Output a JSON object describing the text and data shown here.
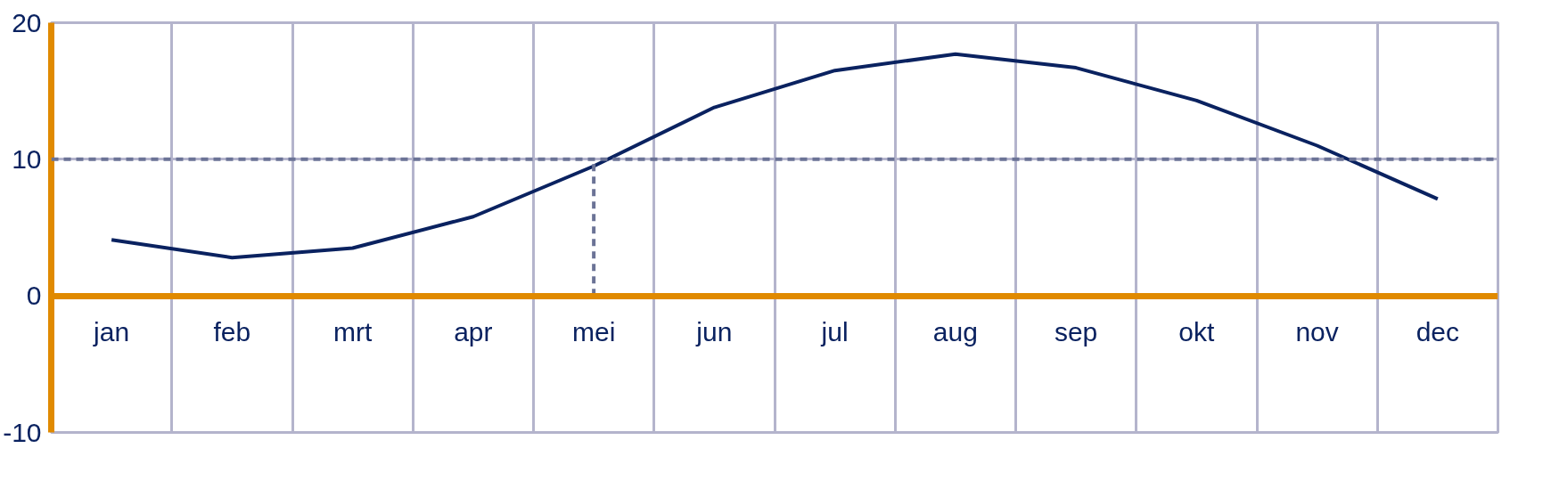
{
  "chart_data": {
    "type": "line",
    "categories": [
      "jan",
      "feb",
      "mrt",
      "apr",
      "mei",
      "jun",
      "jul",
      "aug",
      "sep",
      "okt",
      "nov",
      "dec"
    ],
    "series": [
      {
        "color": "#0a2260",
        "values": [
          4.1,
          2.8,
          3.5,
          5.8,
          9.5,
          13.8,
          16.5,
          17.7,
          16.7,
          14.3,
          11.0,
          7.1
        ]
      }
    ],
    "ylim": [
      -10,
      20
    ],
    "yticks": [
      -10,
      0,
      10,
      20
    ],
    "grid": true,
    "marker": "none",
    "line_style": "solid",
    "ref_lines": [
      {
        "axis": "y",
        "value": 10,
        "color": "#6b7396",
        "line_style": "dashed"
      },
      {
        "axis": "x",
        "value": "mei",
        "color": "#6b7396",
        "line_style": "dashed"
      }
    ]
  }
}
